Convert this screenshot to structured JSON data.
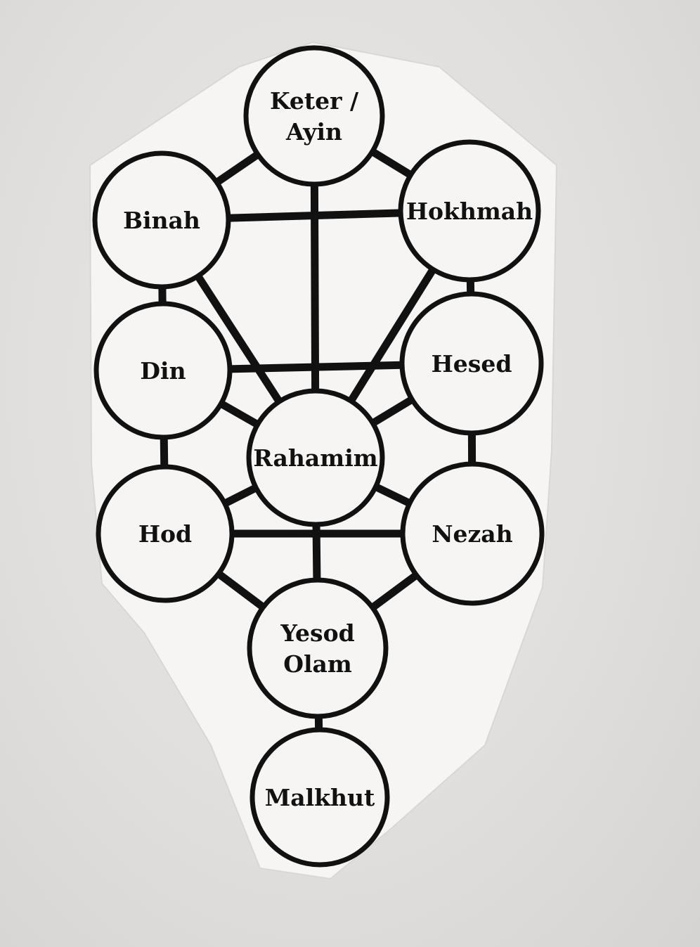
{
  "colors": {
    "background": "#e3e1df",
    "sticker": "#f6f5f3",
    "ink": "#111111"
  },
  "diagram": {
    "sefirot": [
      {
        "id": "keter",
        "lines": [
          "Keter /",
          "Ayin"
        ]
      },
      {
        "id": "binah",
        "lines": [
          "Binah"
        ]
      },
      {
        "id": "hokhmah",
        "lines": [
          "Hokhmah"
        ]
      },
      {
        "id": "din",
        "lines": [
          "Din"
        ]
      },
      {
        "id": "hesed",
        "lines": [
          "Hesed"
        ]
      },
      {
        "id": "rahamim",
        "lines": [
          "Rahamim"
        ]
      },
      {
        "id": "hod",
        "lines": [
          "Hod"
        ]
      },
      {
        "id": "nezah",
        "lines": [
          "Nezah"
        ]
      },
      {
        "id": "yesod",
        "lines": [
          "Yesod",
          "Olam"
        ]
      },
      {
        "id": "malkhut",
        "lines": [
          "Malkhut"
        ]
      }
    ],
    "paths": [
      [
        "keter",
        "binah"
      ],
      [
        "keter",
        "hokhmah"
      ],
      [
        "keter",
        "rahamim"
      ],
      [
        "binah",
        "hokhmah"
      ],
      [
        "binah",
        "din"
      ],
      [
        "binah",
        "rahamim"
      ],
      [
        "hokhmah",
        "hesed"
      ],
      [
        "hokhmah",
        "rahamim"
      ],
      [
        "din",
        "hesed"
      ],
      [
        "din",
        "rahamim"
      ],
      [
        "din",
        "hod"
      ],
      [
        "hesed",
        "rahamim"
      ],
      [
        "hesed",
        "nezah"
      ],
      [
        "rahamim",
        "hod"
      ],
      [
        "rahamim",
        "nezah"
      ],
      [
        "rahamim",
        "yesod"
      ],
      [
        "hod",
        "nezah"
      ],
      [
        "hod",
        "yesod"
      ],
      [
        "nezah",
        "yesod"
      ],
      [
        "yesod",
        "malkhut"
      ]
    ]
  }
}
